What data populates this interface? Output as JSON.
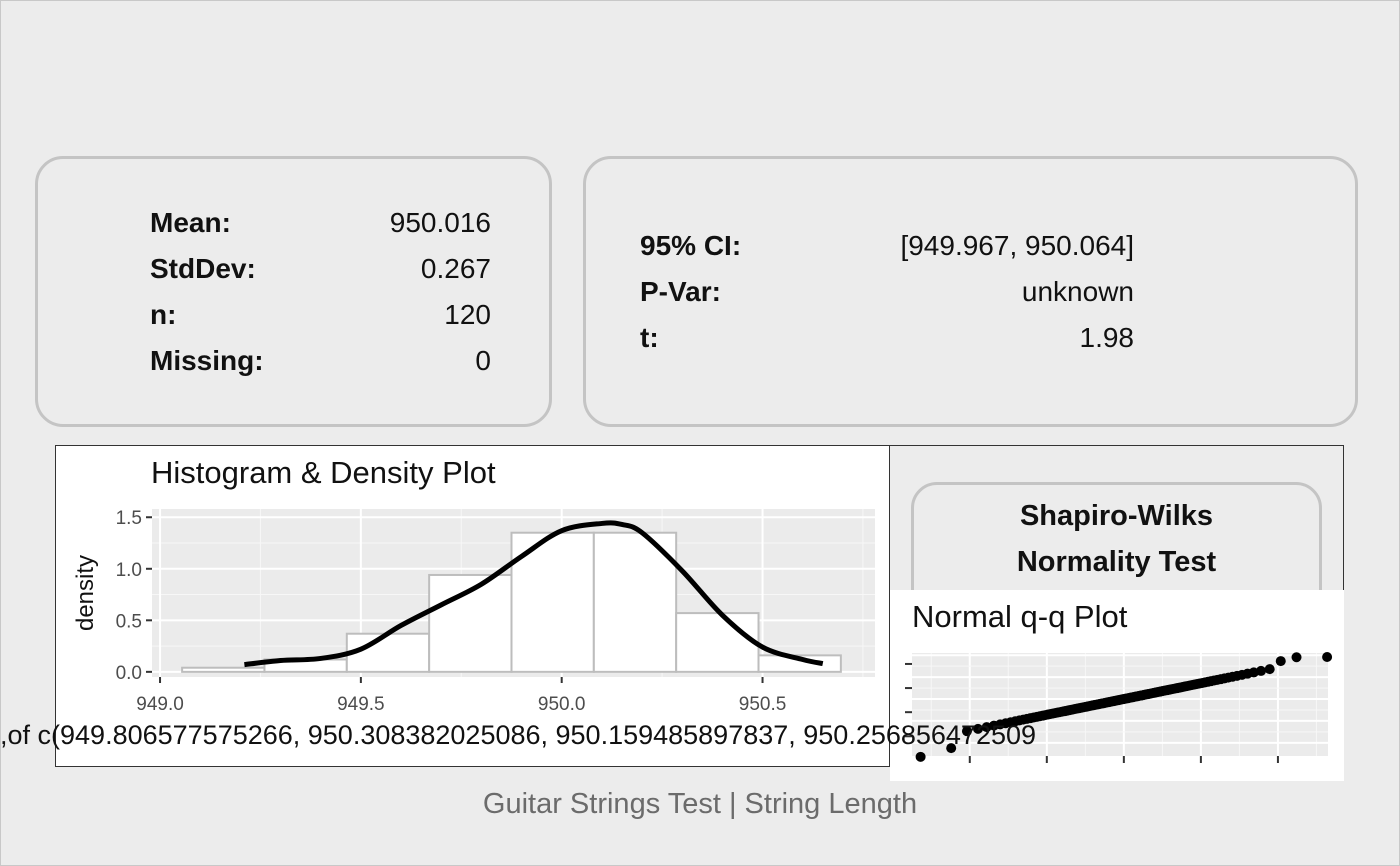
{
  "summary": {
    "rows": [
      {
        "label": "Mean:",
        "value": "950.016"
      },
      {
        "label": "StdDev:",
        "value": "0.267"
      },
      {
        "label": "n:",
        "value": "120"
      },
      {
        "label": "Missing:",
        "value": "0"
      }
    ]
  },
  "test": {
    "rows": [
      {
        "label": "95% CI:",
        "value": "[949.967, 950.064]"
      },
      {
        "label": "P-Var:",
        "value": "unknown"
      },
      {
        "label": "t:",
        "value": "1.98"
      }
    ]
  },
  "shapiro": {
    "line1": "Shapiro-Wilks",
    "line2": "Normality Test"
  },
  "overflow_text": "of c(949.806577575266, 950.308382025086, 950.159485897837, 950.256856472509,",
  "footer": "Guitar Strings Test | String Length",
  "chart_data": [
    {
      "type": "bar",
      "title": "Histogram & Density Plot",
      "xlabel": "",
      "ylabel": "density",
      "xlim": [
        948.98,
        950.78
      ],
      "ylim": [
        0,
        1.5
      ],
      "x_ticks": [
        "949.0",
        "949.5",
        "950.0",
        "950.5"
      ],
      "x_tick_values": [
        949.0,
        949.5,
        950.0,
        950.5
      ],
      "y_ticks": [
        "0.0",
        "0.5",
        "1.0",
        "1.5"
      ],
      "y_tick_values": [
        0,
        0.5,
        1.0,
        1.5
      ],
      "bins": [
        {
          "x0": 949.055,
          "x1": 949.26,
          "density": 0.04
        },
        {
          "x0": 949.26,
          "x1": 949.465,
          "density": 0.12
        },
        {
          "x0": 949.465,
          "x1": 949.67,
          "density": 0.37
        },
        {
          "x0": 949.67,
          "x1": 949.875,
          "density": 0.94
        },
        {
          "x0": 949.875,
          "x1": 950.08,
          "density": 1.35
        },
        {
          "x0": 950.08,
          "x1": 950.285,
          "density": 1.35
        },
        {
          "x0": 950.285,
          "x1": 950.49,
          "density": 0.57
        },
        {
          "x0": 950.49,
          "x1": 950.695,
          "density": 0.16
        }
      ],
      "density_curve": {
        "x": [
          949.21,
          949.3,
          949.4,
          949.5,
          949.6,
          949.7,
          949.8,
          949.9,
          950.0,
          950.1,
          950.15,
          950.2,
          950.3,
          950.4,
          950.5,
          950.6,
          950.65
        ],
        "y": [
          0.07,
          0.11,
          0.13,
          0.22,
          0.45,
          0.65,
          0.85,
          1.12,
          1.37,
          1.44,
          1.43,
          1.35,
          0.98,
          0.55,
          0.24,
          0.12,
          0.08
        ]
      },
      "grid": true
    },
    {
      "type": "scatter",
      "title": "Normal q-q Plot",
      "xlabel": "",
      "ylabel": "",
      "grid": true,
      "n_points": 120
    }
  ]
}
